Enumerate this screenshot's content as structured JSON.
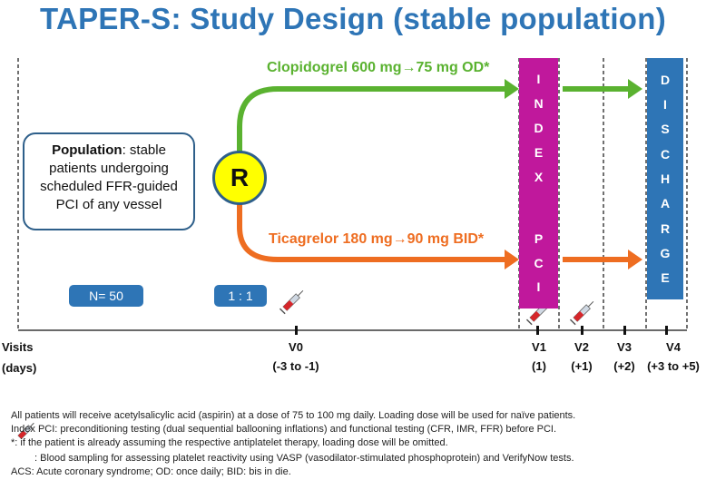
{
  "title": "TAPER-S: Study Design (stable population)",
  "population": {
    "label": "Population",
    "text_line1": ": stable",
    "text_line2": "patients undergoing",
    "text_line3": "scheduled FFR-guided",
    "text_line4": "PCI of any vessel"
  },
  "randomization": "R",
  "arms": {
    "clopidogrel": "Clopidogrel 600 mg→75 mg OD*",
    "ticagrelor": "Ticagrelor 180 mg→90 mg BID*"
  },
  "sample_size": "N= 50",
  "ratio": "1 : 1",
  "index_pci": [
    "I",
    "N",
    "D",
    "E",
    "X",
    "",
    "P",
    "C",
    "I"
  ],
  "discharge": [
    "D",
    "I",
    "S",
    "C",
    "H",
    "A",
    "R",
    "G",
    "E"
  ],
  "visits_header": {
    "line1": "Visits",
    "line2": "(days)"
  },
  "visits": [
    {
      "name": "V0",
      "days": "(-3 to -1)"
    },
    {
      "name": "V1",
      "days": "(1)"
    },
    {
      "name": "V2",
      "days": "(+1)"
    },
    {
      "name": "V3",
      "days": "(+2)"
    },
    {
      "name": "V4",
      "days": "(+3 to +5)"
    }
  ],
  "colors": {
    "title": "#2e75b6",
    "green": "#5ab230",
    "orange": "#ee6d21",
    "index": "#c0189c",
    "discharge": "#2e75b6"
  },
  "footnotes": {
    "line1": "All patients will receive acetylsalicylic acid (aspirin) at a dose of 75 to 100 mg daily. Loading dose will be used for naïve patients.",
    "line2": "Index PCI: preconditioning testing (dual sequential ballooning inflations) and functional testing (CFR, IMR, FFR) before PCI.",
    "line3": "*:  if the patient is already assuming the respective antiplatelet therapy, loading dose will be omitted.",
    "line4": ": Blood sampling for assessing platelet reactivity using VASP (vasodilator-stimulated phosphoprotein)  and VerifyNow tests.",
    "line5": "ACS: Acute coronary syndrome; OD: once daily; BID: bis in die."
  },
  "icons": [
    "syringe-icon"
  ]
}
